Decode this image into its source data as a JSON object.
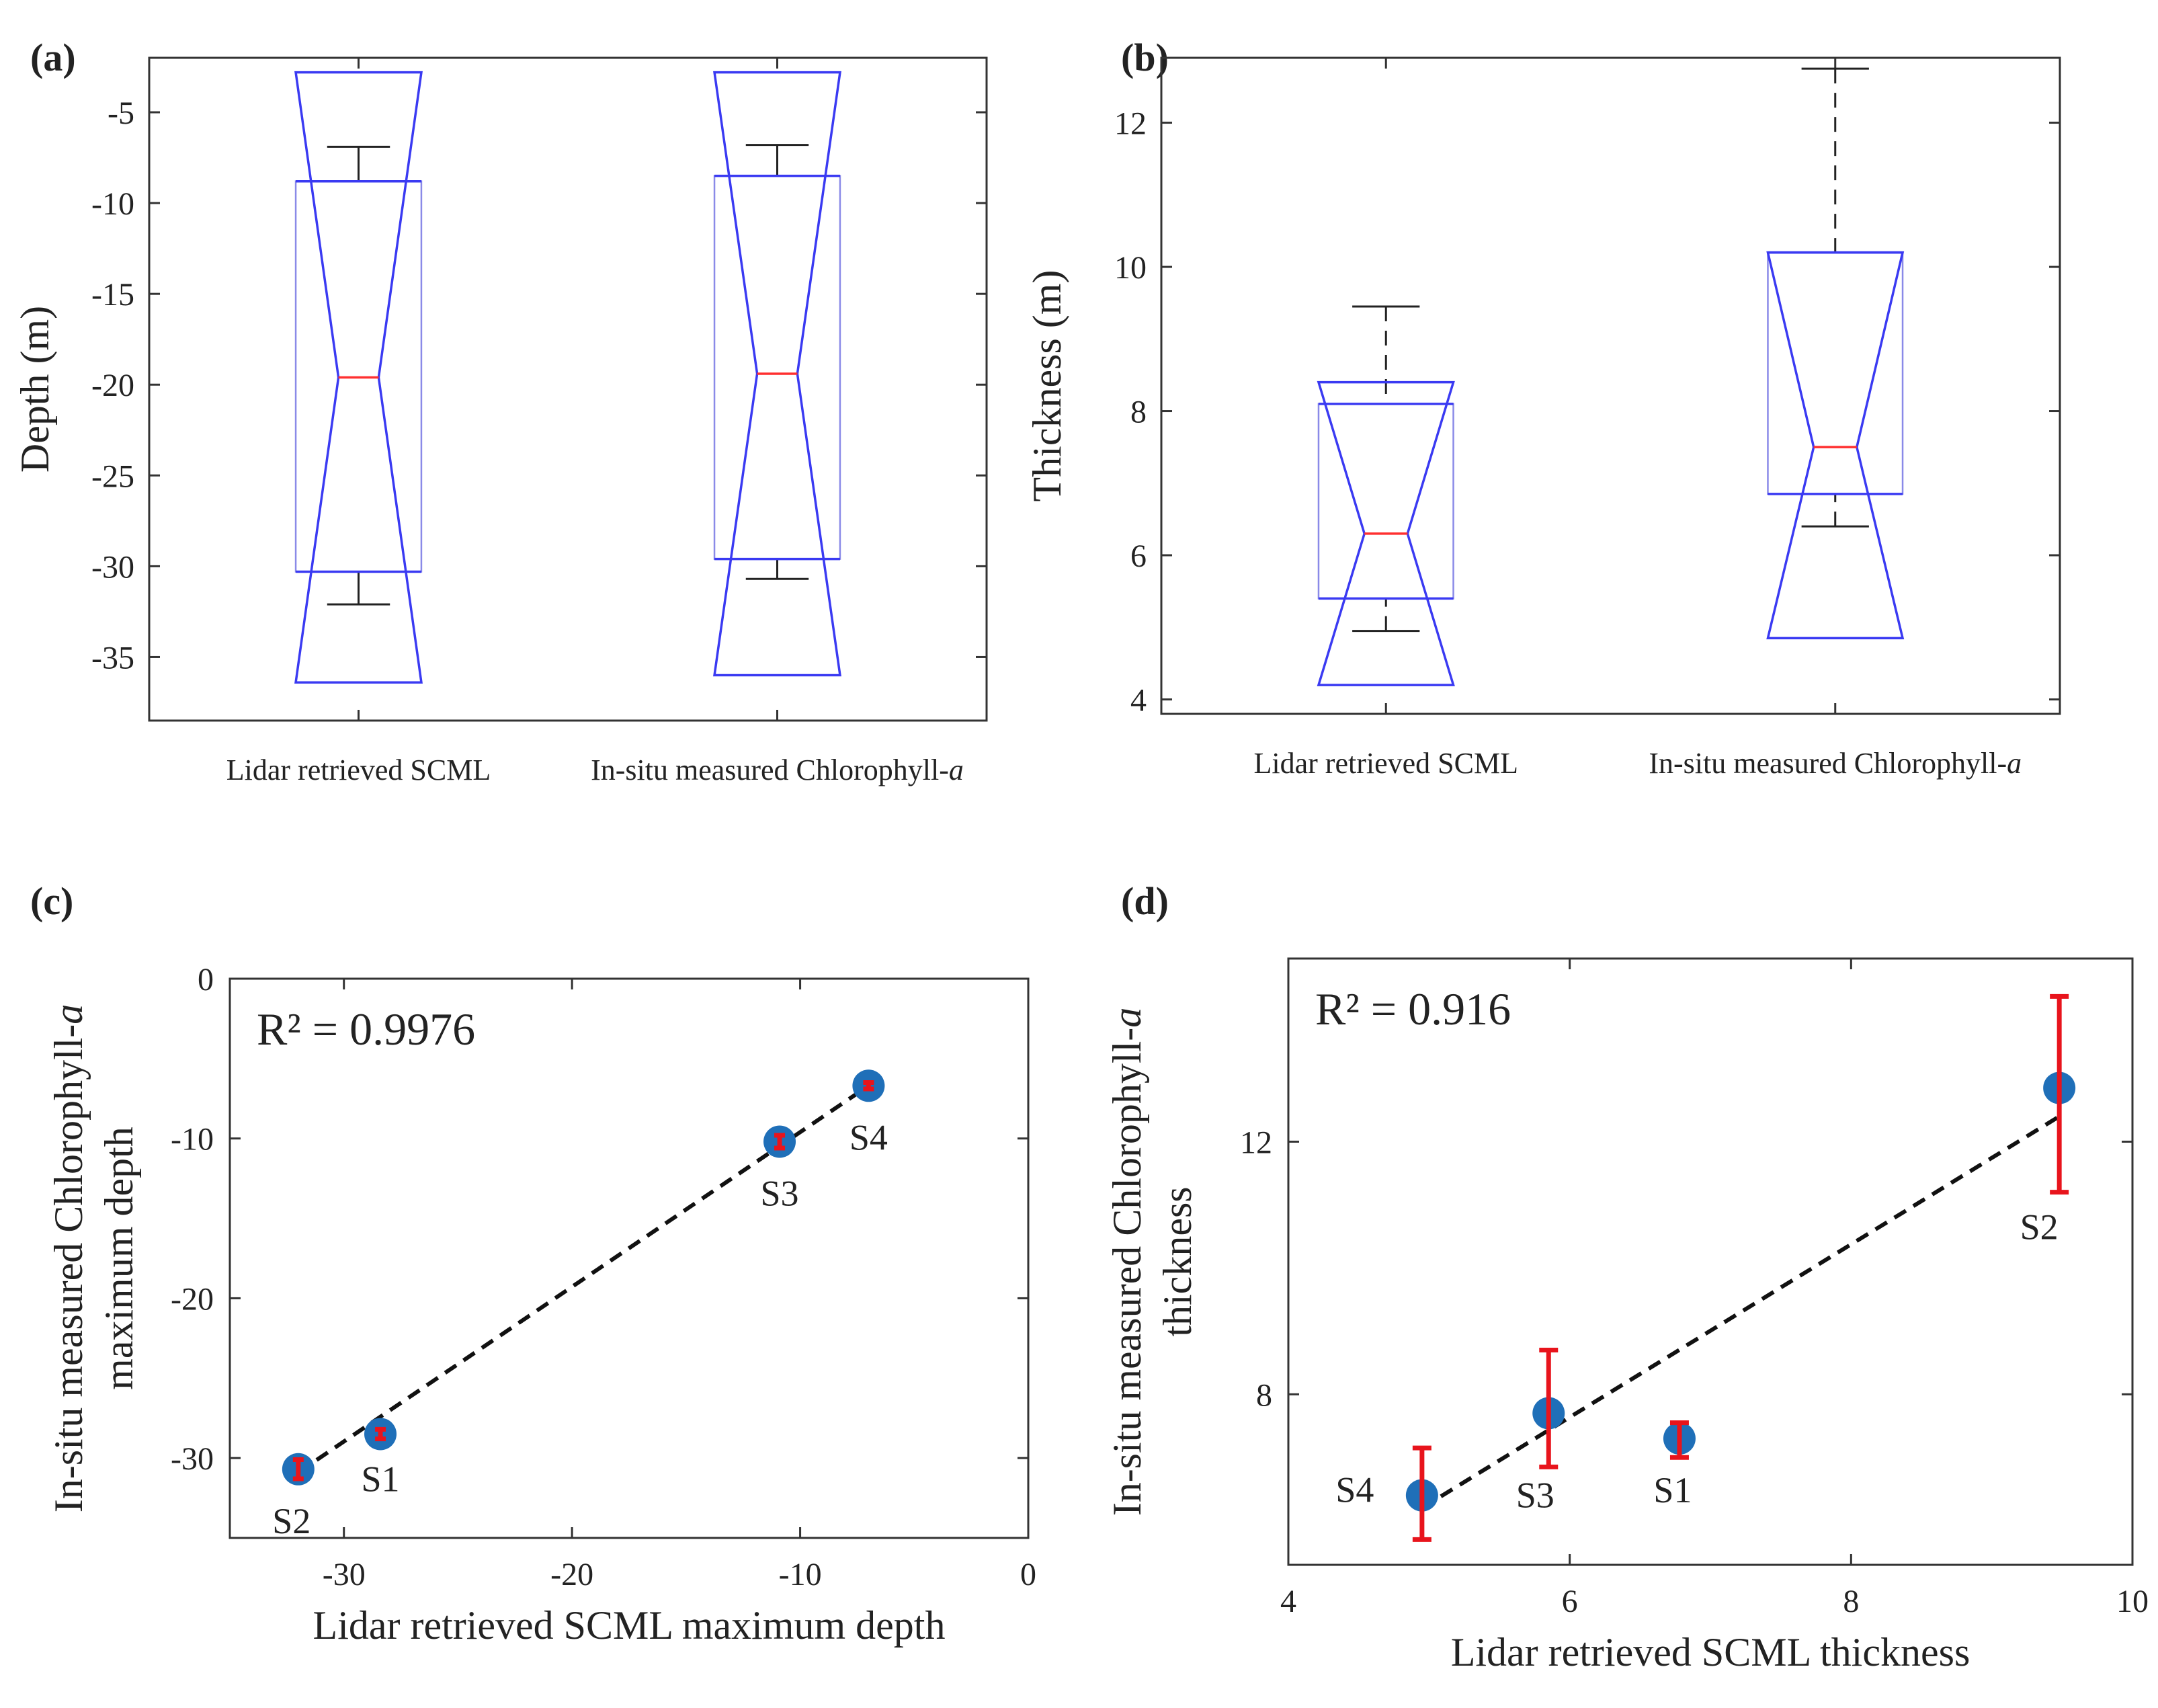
{
  "chart_data": [
    {
      "id": "a",
      "panel_label": "(a)",
      "type": "boxplot",
      "ylabel": "Depth (m)",
      "ylim": [
        -38.5,
        -2.0
      ],
      "yticks": [
        -35,
        -30,
        -25,
        -20,
        -15,
        -10,
        -5
      ],
      "categories": [
        "Lidar retrieved  SCML",
        "In-situ  measured  Chlorophyll-a"
      ],
      "boxes": [
        {
          "category": "Lidar retrieved  SCML",
          "q1": -30.3,
          "median": -19.6,
          "q3": -8.8,
          "whisker_low": -32.1,
          "whisker_high": -6.9,
          "notch_low": -36.4,
          "notch_high": -2.8
        },
        {
          "category": "In-situ  measured  Chlorophyll-a",
          "q1": -29.6,
          "median": -19.4,
          "q3": -8.5,
          "whisker_low": -30.7,
          "whisker_high": -6.8,
          "notch_low": -36.0,
          "notch_high": -2.8
        }
      ]
    },
    {
      "id": "b",
      "panel_label": "(b)",
      "type": "boxplot",
      "ylabel": "Thickness (m)",
      "ylim": [
        3.8,
        12.9
      ],
      "yticks": [
        4,
        6,
        8,
        10,
        12
      ],
      "categories": [
        "Lidar retrieved  SCML",
        "In-situ  measured  Chlorophyll-a"
      ],
      "boxes": [
        {
          "category": "Lidar retrieved  SCML",
          "q1": 5.4,
          "median": 6.3,
          "q3": 8.1,
          "whisker_low": 4.95,
          "whisker_high": 9.45,
          "notch_low": 4.2,
          "notch_high": 8.4
        },
        {
          "category": "In-situ  measured  Chlorophyll-a",
          "q1": 6.85,
          "median": 7.5,
          "q3": 10.2,
          "whisker_low": 6.4,
          "whisker_high": 12.75,
          "notch_low": 4.85,
          "notch_high": 10.2
        }
      ]
    },
    {
      "id": "c",
      "panel_label": "(c)",
      "type": "scatter",
      "ylabel": "In-situ measured Chlorophyll-a maximum depth",
      "ylabel_line1": "In-situ measured Chlorophyll-a",
      "ylabel_line2": "maximum depth",
      "xlabel": "Lidar retrieved SCML maximum depth",
      "xlim": [
        -35,
        0
      ],
      "ylim": [
        -35,
        0
      ],
      "xticks": [
        -30,
        -20,
        -10,
        0
      ],
      "yticks": [
        -30,
        -20,
        -10,
        0
      ],
      "annotation": "R² = 0.9976",
      "points": [
        {
          "label": "S1",
          "x": -28.4,
          "y": -28.5,
          "err": 0.3
        },
        {
          "label": "S2",
          "x": -32.0,
          "y": -30.7,
          "err": 0.6
        },
        {
          "label": "S3",
          "x": -10.9,
          "y": -10.2,
          "err": 0.4
        },
        {
          "label": "S4",
          "x": -7.0,
          "y": -6.7,
          "err": 0.2
        }
      ],
      "fit_line": {
        "x": [
          -32.0,
          -7.0
        ],
        "y": [
          -30.9,
          -6.7
        ]
      }
    },
    {
      "id": "d",
      "panel_label": "(d)",
      "type": "scatter",
      "ylabel": "In-situ measured Chlorophyll-a thickness",
      "ylabel_line1": "In-situ measured Chlorophyll-a",
      "ylabel_line2": "thickness",
      "xlabel": "Lidar retrieved SCML thickness",
      "xlim": [
        4,
        10
      ],
      "ylim": [
        5.3,
        14.9
      ],
      "xticks": [
        4,
        6,
        8,
        10
      ],
      "yticks": [
        8,
        12
      ],
      "annotation": "R² = 0.916",
      "points": [
        {
          "label": "S1",
          "x": 6.78,
          "y": 7.3,
          "err_low": 7.0,
          "err_high": 7.55
        },
        {
          "label": "S2",
          "x": 9.48,
          "y": 12.85,
          "err_low": 11.2,
          "err_high": 14.3
        },
        {
          "label": "S3",
          "x": 5.85,
          "y": 7.7,
          "err_low": 6.85,
          "err_high": 8.7
        },
        {
          "label": "S4",
          "x": 4.95,
          "y": 6.4,
          "err_low": 5.7,
          "err_high": 7.15
        }
      ],
      "fit_line": {
        "x": [
          4.95,
          9.48
        ],
        "y": [
          6.2,
          12.4
        ]
      }
    }
  ]
}
